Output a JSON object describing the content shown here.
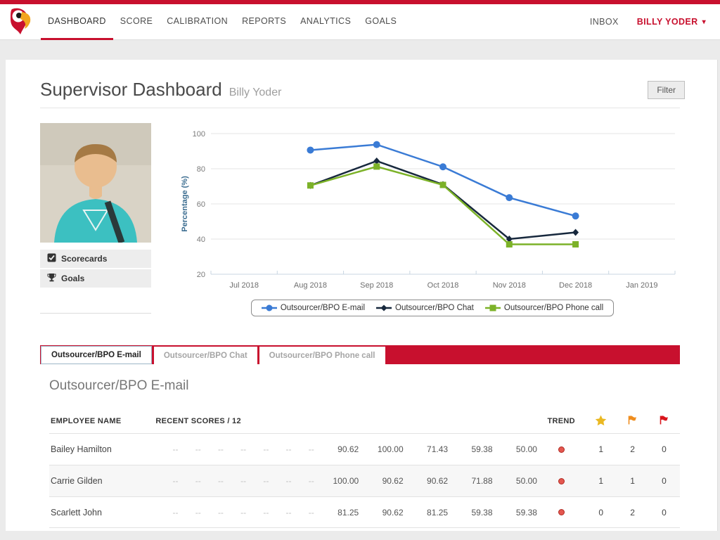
{
  "brand": {
    "accent_color": "#c8102e",
    "logo": "parrot-logo"
  },
  "nav": {
    "items": [
      {
        "label": "DASHBOARD",
        "active": true
      },
      {
        "label": "SCORE",
        "active": false
      },
      {
        "label": "CALIBRATION",
        "active": false
      },
      {
        "label": "REPORTS",
        "active": false
      },
      {
        "label": "ANALYTICS",
        "active": false
      },
      {
        "label": "GOALS",
        "active": false
      }
    ],
    "inbox_label": "INBOX",
    "user_label": "BILLY YODER"
  },
  "header": {
    "title": "Supervisor Dashboard",
    "subtitle": "Billy Yoder",
    "filter_label": "Filter"
  },
  "sidebar": {
    "items": [
      {
        "label": "Scorecards",
        "icon": "checkbox-icon"
      },
      {
        "label": "Goals",
        "icon": "trophy-icon"
      }
    ]
  },
  "chart_data": {
    "type": "line",
    "x": [
      "Jul 2018",
      "Aug 2018",
      "Sep 2018",
      "Oct 2018",
      "Nov 2018",
      "Dec 2018",
      "Jan 2019"
    ],
    "ylabel": "Percentage (%)",
    "ylim": [
      20,
      100
    ],
    "yticks": [
      20,
      40,
      60,
      80,
      100
    ],
    "grid": true,
    "legend_position": "bottom",
    "series": [
      {
        "name": "Outsourcer/BPO E-mail",
        "color": "#3a7bd5",
        "marker": "circle",
        "values": [
          null,
          90.62,
          93.75,
          81.1,
          63.54,
          53.13,
          null
        ]
      },
      {
        "name": "Outsourcer/BPO Chat",
        "color": "#17283d",
        "marker": "diamond",
        "values": [
          null,
          70.5,
          84.4,
          71.0,
          40.0,
          43.8,
          null
        ]
      },
      {
        "name": "Outsourcer/BPO Phone call",
        "color": "#7cb228",
        "marker": "square",
        "values": [
          null,
          70.5,
          81.25,
          70.8,
          37.0,
          37.0,
          null
        ]
      }
    ]
  },
  "tabs": [
    {
      "label": "Outsourcer/BPO E-mail",
      "active": true
    },
    {
      "label": "Outsourcer/BPO Chat",
      "active": false
    },
    {
      "label": "Outsourcer/BPO Phone call",
      "active": false
    }
  ],
  "section": {
    "title": "Outsourcer/BPO E-mail"
  },
  "table": {
    "col_employee": "EMPLOYEE NAME",
    "col_scores": "RECENT SCORES / 12",
    "col_trend": "TREND",
    "count_icons": [
      {
        "name": "gold-star-icon",
        "color": "#eab822"
      },
      {
        "name": "orange-flag-icon",
        "color": "#ef8d1e"
      },
      {
        "name": "red-flag-icon",
        "color": "#d9151c"
      }
    ],
    "rows": [
      {
        "name": "Bailey Hamilton",
        "scores": [
          "--",
          "--",
          "--",
          "--",
          "--",
          "--",
          "--",
          "90.62",
          "100.00",
          "71.43",
          "59.38",
          "50.00"
        ],
        "trend": "down",
        "counts": [
          1,
          2,
          0
        ]
      },
      {
        "name": "Carrie Gilden",
        "scores": [
          "--",
          "--",
          "--",
          "--",
          "--",
          "--",
          "--",
          "100.00",
          "90.62",
          "90.62",
          "71.88",
          "50.00"
        ],
        "trend": "down",
        "counts": [
          1,
          1,
          0
        ]
      },
      {
        "name": "Scarlett John",
        "scores": [
          "--",
          "--",
          "--",
          "--",
          "--",
          "--",
          "--",
          "81.25",
          "90.62",
          "81.25",
          "59.38",
          "59.38"
        ],
        "trend": "down",
        "counts": [
          0,
          2,
          0
        ]
      }
    ]
  }
}
